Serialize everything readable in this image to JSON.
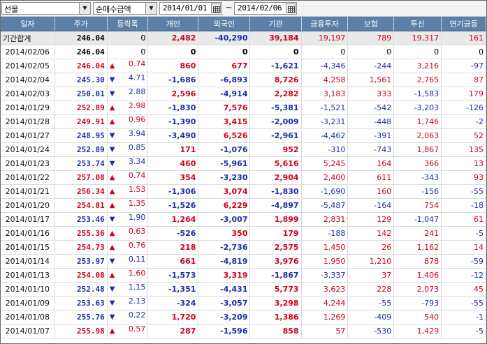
{
  "toolbar": {
    "market": "선물",
    "metric": "순매수금액",
    "date_from": "2014/01/01",
    "date_to": "2014/02/06",
    "separator": "~"
  },
  "columns": [
    "일자",
    "주가",
    "등락폭",
    "개인",
    "외국인",
    "기관",
    "금융투자",
    "보험",
    "투신",
    "연기금등"
  ],
  "total": {
    "date": "기간합계",
    "price": "246.04",
    "chg": "0",
    "ind": "2,482",
    "frg": "-40,290",
    "inst": "39,184",
    "fin": "19,197",
    "ins": "789",
    "trust": "19,317",
    "pen": "161"
  },
  "rows": [
    {
      "date": "2014/02/06",
      "price": "246.04",
      "dir": "none",
      "chg": "0",
      "ind": "0",
      "frg": "0",
      "inst": "0",
      "fin": "0",
      "ins": "0",
      "trust": "0",
      "pen": "0"
    },
    {
      "date": "2014/02/05",
      "price": "246.04",
      "dir": "up",
      "chg": "0.74",
      "ind": "860",
      "frg": "677",
      "inst": "-1,621",
      "fin": "-4,346",
      "ins": "-244",
      "trust": "3,216",
      "pen": "-97"
    },
    {
      "date": "2014/02/04",
      "price": "245.30",
      "dir": "dn",
      "chg": "4.71",
      "ind": "-1,686",
      "frg": "-6,893",
      "inst": "8,726",
      "fin": "4,258",
      "ins": "1,561",
      "trust": "2,765",
      "pen": "87"
    },
    {
      "date": "2014/02/03",
      "price": "250.01",
      "dir": "dn",
      "chg": "2.88",
      "ind": "2,596",
      "frg": "-4,914",
      "inst": "2,282",
      "fin": "3,183",
      "ins": "333",
      "trust": "-1,583",
      "pen": "179"
    },
    {
      "date": "2014/01/29",
      "price": "252.89",
      "dir": "up",
      "chg": "2.98",
      "ind": "-1,830",
      "frg": "7,576",
      "inst": "-5,381",
      "fin": "-1,521",
      "ins": "-542",
      "trust": "-3,203",
      "pen": "-126"
    },
    {
      "date": "2014/01/28",
      "price": "249.91",
      "dir": "up",
      "chg": "0.96",
      "ind": "-1,390",
      "frg": "3,415",
      "inst": "-2,009",
      "fin": "-3,231",
      "ins": "-448",
      "trust": "1,746",
      "pen": "-2"
    },
    {
      "date": "2014/01/27",
      "price": "248.95",
      "dir": "dn",
      "chg": "3.94",
      "ind": "-3,490",
      "frg": "6,526",
      "inst": "-2,961",
      "fin": "-4,462",
      "ins": "-391",
      "trust": "2,063",
      "pen": "52"
    },
    {
      "date": "2014/01/24",
      "price": "252.89",
      "dir": "dn",
      "chg": "0.85",
      "ind": "171",
      "frg": "-1,076",
      "inst": "952",
      "fin": "-310",
      "ins": "-743",
      "trust": "1,867",
      "pen": "135"
    },
    {
      "date": "2014/01/23",
      "price": "253.74",
      "dir": "dn",
      "chg": "3.34",
      "ind": "460",
      "frg": "-5,961",
      "inst": "5,616",
      "fin": "5,245",
      "ins": "164",
      "trust": "366",
      "pen": "13"
    },
    {
      "date": "2014/01/22",
      "price": "257.08",
      "dir": "up",
      "chg": "0.74",
      "ind": "354",
      "frg": "-3,230",
      "inst": "2,904",
      "fin": "2,400",
      "ins": "611",
      "trust": "-343",
      "pen": "93"
    },
    {
      "date": "2014/01/21",
      "price": "256.34",
      "dir": "up",
      "chg": "1.53",
      "ind": "-1,306",
      "frg": "3,074",
      "inst": "-1,830",
      "fin": "-1,690",
      "ins": "160",
      "trust": "-156",
      "pen": "-55"
    },
    {
      "date": "2014/01/20",
      "price": "254.81",
      "dir": "up",
      "chg": "1.35",
      "ind": "-1,526",
      "frg": "6,229",
      "inst": "-4,897",
      "fin": "-5,487",
      "ins": "-164",
      "trust": "754",
      "pen": "-18"
    },
    {
      "date": "2014/01/17",
      "price": "253.46",
      "dir": "dn",
      "chg": "1.90",
      "ind": "1,264",
      "frg": "-3,007",
      "inst": "1,899",
      "fin": "2,831",
      "ins": "129",
      "trust": "-1,047",
      "pen": "61"
    },
    {
      "date": "2014/01/16",
      "price": "255.36",
      "dir": "up",
      "chg": "0.63",
      "ind": "-526",
      "frg": "350",
      "inst": "179",
      "fin": "-188",
      "ins": "142",
      "trust": "241",
      "pen": "-5"
    },
    {
      "date": "2014/01/15",
      "price": "254.73",
      "dir": "up",
      "chg": "0.76",
      "ind": "218",
      "frg": "-2,736",
      "inst": "2,575",
      "fin": "1,450",
      "ins": "26",
      "trust": "1,162",
      "pen": "14"
    },
    {
      "date": "2014/01/14",
      "price": "253.97",
      "dir": "dn",
      "chg": "0.11",
      "ind": "661",
      "frg": "-4,819",
      "inst": "3,976",
      "fin": "1,950",
      "ins": "1,210",
      "trust": "878",
      "pen": "-59"
    },
    {
      "date": "2014/01/13",
      "price": "254.08",
      "dir": "up",
      "chg": "1.60",
      "ind": "-1,573",
      "frg": "3,319",
      "inst": "-1,867",
      "fin": "-3,337",
      "ins": "37",
      "trust": "1,406",
      "pen": "-12"
    },
    {
      "date": "2014/01/10",
      "price": "252.48",
      "dir": "dn",
      "chg": "1.15",
      "ind": "-1,351",
      "frg": "-4,431",
      "inst": "5,773",
      "fin": "3,623",
      "ins": "228",
      "trust": "2,073",
      "pen": "45"
    },
    {
      "date": "2014/01/09",
      "price": "253.63",
      "dir": "dn",
      "chg": "2.13",
      "ind": "-324",
      "frg": "-3,057",
      "inst": "3,298",
      "fin": "4,244",
      "ins": "-55",
      "trust": "-793",
      "pen": "-55"
    },
    {
      "date": "2014/01/08",
      "price": "255.76",
      "dir": "dn",
      "chg": "0.22",
      "ind": "1,720",
      "frg": "-3,209",
      "inst": "1,386",
      "fin": "1,269",
      "ins": "-409",
      "trust": "540",
      "pen": "-1"
    },
    {
      "date": "2014/01/07",
      "price": "255.98",
      "dir": "up",
      "chg": "0.57",
      "ind": "287",
      "frg": "-1,596",
      "inst": "858",
      "fin": "57",
      "ins": "-530",
      "trust": "1,429",
      "pen": "-5"
    }
  ],
  "colors": {
    "up": "#d0021b",
    "down": "#1a2fa8",
    "header": "#5b7fa6"
  },
  "icons": {
    "up": "up-triangle-icon",
    "down": "down-triangle-icon",
    "calendar": "calendar-icon",
    "dropdown": "chevron-down-icon"
  }
}
